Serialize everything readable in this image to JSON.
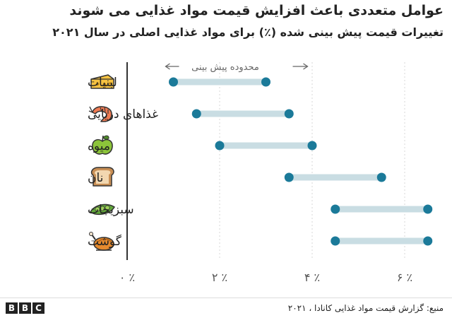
{
  "title": "عوامل متعددی باعث افزایش قیمت مواد غذایی می شوند",
  "subtitle": "تغییرات قیمت پیش بینی شده (٪) برای مواد غذایی اصلی در سال ۲۰۲۱",
  "legend_label": "محدوده پیش بینی",
  "source": "منبع: گزارش قیمت مواد غذایی کانادا ، ۲۰۲۱",
  "logo_letters": [
    "B",
    "B",
    "C"
  ],
  "colors": {
    "dot": "#1b7a99",
    "range_bar": "#c9dde3",
    "axis": "#333333",
    "grid": "#d7d7d7"
  },
  "chart_data": {
    "type": "range_dot",
    "categories": [
      {
        "label": "لبنیات",
        "icon": "cheese-icon",
        "low": 1.0,
        "high": 3.0
      },
      {
        "label": "غذاهای دریایی",
        "icon": "shrimp-icon",
        "low": 1.5,
        "high": 3.5
      },
      {
        "label": "میوه",
        "icon": "apple-icon",
        "low": 2.0,
        "high": 4.0
      },
      {
        "label": "نان",
        "icon": "bread-icon",
        "low": 3.5,
        "high": 5.5
      },
      {
        "label": "سبزیجات",
        "icon": "pea-pod-icon",
        "low": 4.5,
        "high": 6.5
      },
      {
        "label": "گوشت",
        "icon": "roast-chicken-icon",
        "low": 4.5,
        "high": 6.5
      }
    ],
    "x_ticks": [
      {
        "value": 0,
        "label": "٪ ۰"
      },
      {
        "value": 2,
        "label": "٪ ۲"
      },
      {
        "value": 4,
        "label": "٪ ۴"
      },
      {
        "value": 6,
        "label": "٪ ۶"
      }
    ],
    "xlim": [
      0,
      6.5
    ],
    "grid": true,
    "legend_position": "top"
  }
}
